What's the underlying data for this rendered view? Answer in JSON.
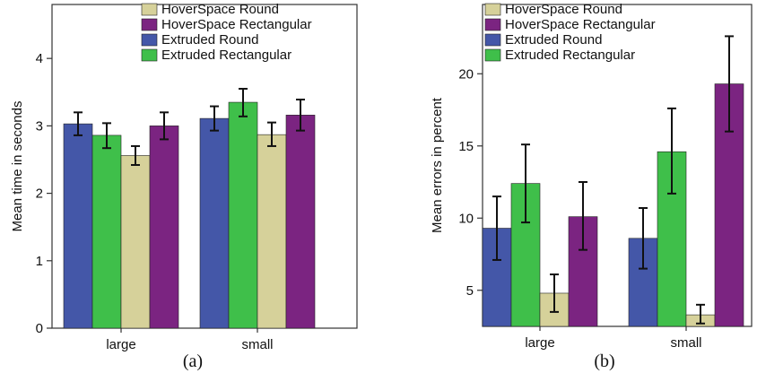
{
  "colors": {
    "HoverSpace Round": "#d6d19a",
    "HoverSpace Rectangular": "#7b2481",
    "Extruded Round": "#4457a8",
    "Extruded Rectangular": "#3fbf4a"
  },
  "chart_data": [
    {
      "type": "bar",
      "caption": "(a)",
      "ylabel": "Mean time in seconds",
      "xlabel": "",
      "categories": [
        "large",
        "small"
      ],
      "ylim": [
        0,
        4.8
      ],
      "yticks": [
        0,
        1,
        2,
        3,
        4
      ],
      "legend": [
        "HoverSpace Round",
        "HoverSpace Rectangular",
        "Extruded Round",
        "Extruded Rectangular"
      ],
      "legend_position": "top-right",
      "series": [
        {
          "name": "Extruded Round",
          "values": [
            3.03,
            3.11
          ],
          "err_low": [
            2.86,
            2.93
          ],
          "err_high": [
            3.2,
            3.29
          ]
        },
        {
          "name": "Extruded Rectangular",
          "values": [
            2.86,
            3.35
          ],
          "err_low": [
            2.67,
            3.14
          ],
          "err_high": [
            3.04,
            3.55
          ]
        },
        {
          "name": "HoverSpace Round",
          "values": [
            2.56,
            2.87
          ],
          "err_low": [
            2.42,
            2.7
          ],
          "err_high": [
            2.7,
            3.05
          ]
        },
        {
          "name": "HoverSpace Rectangular",
          "values": [
            3.0,
            3.16
          ],
          "err_low": [
            2.8,
            2.93
          ],
          "err_high": [
            3.2,
            3.39
          ]
        }
      ]
    },
    {
      "type": "bar",
      "caption": "(b)",
      "ylabel": "Mean errors in percent",
      "xlabel": "",
      "categories": [
        "large",
        "small"
      ],
      "ylim": [
        2.5,
        24.8
      ],
      "yticks": [
        5,
        10,
        15,
        20
      ],
      "legend": [
        "HoverSpace Round",
        "HoverSpace Rectangular",
        "Extruded Round",
        "Extruded Rectangular"
      ],
      "legend_position": "top-right",
      "series": [
        {
          "name": "Extruded Round",
          "values": [
            9.3,
            8.6
          ],
          "err_low": [
            7.1,
            6.5
          ],
          "err_high": [
            11.5,
            10.7
          ]
        },
        {
          "name": "Extruded Rectangular",
          "values": [
            12.4,
            14.6
          ],
          "err_low": [
            9.7,
            11.7
          ],
          "err_high": [
            15.1,
            17.6
          ]
        },
        {
          "name": "HoverSpace Round",
          "values": [
            4.8,
            3.3
          ],
          "err_low": [
            3.5,
            2.7
          ],
          "err_high": [
            6.1,
            4.0
          ]
        },
        {
          "name": "HoverSpace Rectangular",
          "values": [
            10.1,
            19.3
          ],
          "err_low": [
            7.8,
            16.0
          ],
          "err_high": [
            12.5,
            22.6
          ]
        }
      ]
    }
  ]
}
